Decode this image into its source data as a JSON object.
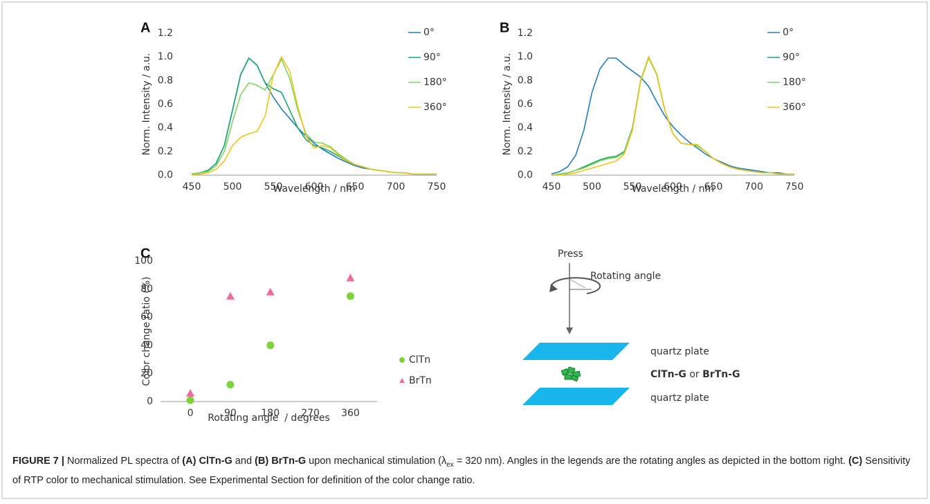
{
  "chart_data": [
    {
      "type": "line",
      "label": "A",
      "ylabel": "Norm. Intensity / a.u.",
      "xlabel": "Wavelength / nm",
      "x": [
        450,
        460,
        470,
        480,
        490,
        500,
        510,
        520,
        530,
        540,
        550,
        560,
        570,
        580,
        590,
        600,
        610,
        620,
        630,
        640,
        650,
        660,
        670,
        680,
        690,
        700,
        710,
        720,
        730,
        740,
        750
      ],
      "xlim": [
        450,
        750
      ],
      "xticks": [
        450,
        500,
        550,
        600,
        650,
        700,
        750
      ],
      "ylim": [
        0,
        1.2
      ],
      "yticks": [
        {
          "value": 0,
          "label": "0.0"
        },
        {
          "value": 0.2,
          "label": "0.2"
        },
        {
          "value": 0.4,
          "label": "0.4"
        },
        {
          "value": 0.6,
          "label": "0.6"
        },
        {
          "value": 0.8,
          "label": "0.8"
        },
        {
          "value": 1,
          "label": "1.0"
        },
        {
          "value": 1.2,
          "label": "1.2"
        }
      ],
      "grid": false,
      "legend": "right",
      "series": [
        {
          "name": "0°",
          "color": "#1f7dc1",
          "values": [
            0.01,
            0.02,
            0.04,
            0.1,
            0.25,
            0.55,
            0.85,
            0.99,
            0.93,
            0.78,
            0.66,
            0.56,
            0.48,
            0.4,
            0.33,
            0.27,
            0.22,
            0.18,
            0.14,
            0.11,
            0.08,
            0.06,
            0.05,
            0.04,
            0.03,
            0.02,
            0.02,
            0.01,
            0.01,
            0.01,
            0.01
          ]
        },
        {
          "name": "90°",
          "color": "#17a86a",
          "values": [
            0.01,
            0.02,
            0.04,
            0.1,
            0.25,
            0.55,
            0.85,
            0.99,
            0.93,
            0.78,
            0.73,
            0.7,
            0.55,
            0.4,
            0.3,
            0.25,
            0.23,
            0.2,
            0.16,
            0.12,
            0.09,
            0.07,
            0.05,
            0.04,
            0.03,
            0.02,
            0.02,
            0.01,
            0.01,
            0.01,
            0.01
          ]
        },
        {
          "name": "180°",
          "color": "#7fd35f",
          "values": [
            0.01,
            0.02,
            0.03,
            0.08,
            0.2,
            0.45,
            0.68,
            0.78,
            0.76,
            0.72,
            0.85,
            0.98,
            0.82,
            0.55,
            0.35,
            0.28,
            0.27,
            0.24,
            0.18,
            0.13,
            0.09,
            0.07,
            0.05,
            0.04,
            0.03,
            0.02,
            0.02,
            0.01,
            0.01,
            0.01,
            0.01
          ]
        },
        {
          "name": "360°",
          "color": "#f3c416",
          "values": [
            0,
            0.01,
            0.02,
            0.05,
            0.12,
            0.25,
            0.32,
            0.35,
            0.37,
            0.5,
            0.85,
            1.0,
            0.88,
            0.58,
            0.33,
            0.23,
            0.25,
            0.23,
            0.17,
            0.12,
            0.09,
            0.07,
            0.05,
            0.04,
            0.03,
            0.02,
            0.02,
            0.01,
            0.01,
            0.01,
            0.01
          ]
        }
      ]
    },
    {
      "type": "line",
      "label": "B",
      "ylabel": "Norm. Intensity / a.u.",
      "xlabel": "Wavelength / nm",
      "x": [
        450,
        460,
        470,
        480,
        490,
        500,
        510,
        520,
        530,
        540,
        550,
        560,
        570,
        580,
        590,
        600,
        610,
        620,
        630,
        640,
        650,
        660,
        670,
        680,
        690,
        700,
        710,
        720,
        730,
        740,
        750
      ],
      "xlim": [
        450,
        750
      ],
      "xticks": [
        450,
        500,
        550,
        600,
        650,
        700,
        750
      ],
      "ylim": [
        0,
        1.2
      ],
      "yticks": [
        {
          "value": 0,
          "label": "0.0"
        },
        {
          "value": 0.2,
          "label": "0.2"
        },
        {
          "value": 0.4,
          "label": "0.4"
        },
        {
          "value": 0.6,
          "label": "0.6"
        },
        {
          "value": 0.8,
          "label": "0.8"
        },
        {
          "value": 1,
          "label": "1.0"
        },
        {
          "value": 1.2,
          "label": "1.2"
        }
      ],
      "grid": false,
      "legend": "right",
      "series": [
        {
          "name": "0°",
          "color": "#1f7dc1",
          "values": [
            0.01,
            0.03,
            0.07,
            0.17,
            0.38,
            0.7,
            0.9,
            0.99,
            0.99,
            0.93,
            0.88,
            0.83,
            0.75,
            0.62,
            0.5,
            0.41,
            0.34,
            0.28,
            0.23,
            0.18,
            0.14,
            0.11,
            0.08,
            0.06,
            0.05,
            0.04,
            0.03,
            0.02,
            0.02,
            0.01,
            0.01
          ]
        },
        {
          "name": "90°",
          "color": "#17a86a",
          "values": [
            0,
            0.01,
            0.02,
            0.04,
            0.07,
            0.1,
            0.13,
            0.15,
            0.16,
            0.2,
            0.4,
            0.8,
            1.0,
            0.85,
            0.55,
            0.35,
            0.27,
            0.26,
            0.25,
            0.2,
            0.14,
            0.1,
            0.07,
            0.05,
            0.04,
            0.03,
            0.02,
            0.02,
            0.01,
            0.01,
            0.01
          ]
        },
        {
          "name": "180°",
          "color": "#7fd35f",
          "values": [
            0,
            0.01,
            0.02,
            0.04,
            0.06,
            0.09,
            0.12,
            0.14,
            0.15,
            0.19,
            0.39,
            0.79,
            0.99,
            0.85,
            0.55,
            0.35,
            0.27,
            0.26,
            0.25,
            0.2,
            0.14,
            0.1,
            0.07,
            0.05,
            0.04,
            0.03,
            0.02,
            0.02,
            0.01,
            0.01,
            0.01
          ]
        },
        {
          "name": "360°",
          "color": "#f3c416",
          "values": [
            0,
            0,
            0.01,
            0.02,
            0.04,
            0.06,
            0.08,
            0.1,
            0.12,
            0.18,
            0.38,
            0.8,
            1.0,
            0.86,
            0.55,
            0.35,
            0.27,
            0.26,
            0.26,
            0.2,
            0.14,
            0.1,
            0.07,
            0.05,
            0.04,
            0.03,
            0.02,
            0.02,
            0.01,
            0.01,
            0.01
          ]
        }
      ]
    },
    {
      "type": "scatter",
      "label": "C",
      "ylabel": "Color change ratio (%)",
      "xlabel": "Rotating angle  / degrees",
      "xlim": [
        -67,
        420
      ],
      "xticks": [
        0,
        90,
        180,
        270,
        360
      ],
      "ylim": [
        0,
        100
      ],
      "yticks": [
        0,
        20,
        40,
        60,
        80,
        100
      ],
      "grid": false,
      "legend": "lower right",
      "series": [
        {
          "name": "ClTn",
          "color": "#7ed33c",
          "marker": "circle",
          "x": [
            0,
            90,
            180,
            360
          ],
          "values": [
            1,
            12,
            40,
            75
          ]
        },
        {
          "name": "BrTn",
          "color": "#f06a9a",
          "marker": "triangle",
          "x": [
            0,
            90,
            180,
            360
          ],
          "values": [
            6,
            75,
            78,
            88
          ]
        }
      ]
    }
  ],
  "diagram": {
    "press": "Press",
    "rotating_angle": "Rotating angle",
    "top_plate": "quartz plate",
    "sample": [
      "ClTn-G",
      " or ",
      "BrTn-G"
    ],
    "bottom_plate": "quartz plate"
  },
  "caption": [
    {
      "text": "FIGURE 7 | ",
      "style": "b"
    },
    {
      "text": "Normalized PL spectra of ",
      "style": "n"
    },
    {
      "text": "(A) ClTn-G",
      "style": "b"
    },
    {
      "text": " and ",
      "style": "n"
    },
    {
      "text": "(B) BrTn-G",
      "style": "b"
    },
    {
      "text": " upon mechanical stimulation (λ",
      "style": "n"
    },
    {
      "text": "ex",
      "style": "sub"
    },
    {
      "text": " = 320 nm). Angles in the legends are the rotating angles as depicted in the bottom right. ",
      "style": "n"
    },
    {
      "text": "(C)",
      "style": "b"
    },
    {
      "text": " Sensitivity of RTP color to mechanical stimulation. See Experimental Section for definition of the color change ratio.",
      "style": "n"
    }
  ]
}
